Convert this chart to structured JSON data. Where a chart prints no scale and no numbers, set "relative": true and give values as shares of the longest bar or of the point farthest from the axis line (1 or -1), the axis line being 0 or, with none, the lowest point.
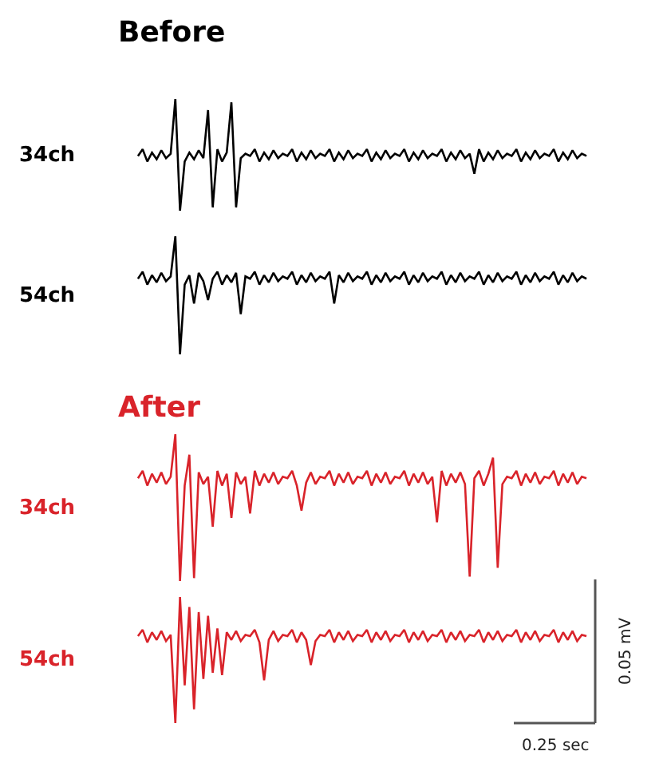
{
  "chart_data": [
    {
      "type": "line",
      "title": "Before",
      "ylabel": "34ch",
      "relative": true,
      "categories": [
        null,
        null,
        null,
        null,
        null,
        null,
        null,
        null,
        null,
        null,
        null,
        null,
        null,
        null,
        null,
        null,
        null,
        null,
        null,
        null,
        null,
        null,
        null,
        null,
        null,
        null,
        null,
        null,
        null,
        null,
        null,
        null,
        null,
        null,
        null,
        null,
        null,
        null,
        null,
        null,
        null,
        null,
        null,
        null,
        null,
        null,
        null,
        null,
        null,
        null,
        null,
        null,
        null,
        null,
        null,
        null,
        null,
        null,
        null,
        null,
        null,
        null,
        null,
        null,
        null,
        null,
        null,
        null,
        null,
        null,
        null,
        null,
        null,
        null,
        null,
        null,
        null,
        null,
        null,
        null,
        null,
        null,
        null,
        null,
        null,
        null,
        null,
        null,
        null,
        null,
        null,
        null,
        null,
        null,
        null,
        null,
        null
      ],
      "series": [
        {
          "color": "#000000",
          "values": [
            0.49,
            0.55,
            0.44,
            0.52,
            0.46,
            0.54,
            0.47,
            0.51,
            1.0,
            0.0,
            0.44,
            0.52,
            0.46,
            0.54,
            0.47,
            0.9,
            0.03,
            0.55,
            0.44,
            0.52,
            0.97,
            0.03,
            0.47,
            0.51,
            0.49,
            0.55,
            0.44,
            0.52,
            0.46,
            0.54,
            0.47,
            0.51,
            0.49,
            0.55,
            0.44,
            0.52,
            0.46,
            0.54,
            0.47,
            0.51,
            0.49,
            0.55,
            0.44,
            0.52,
            0.46,
            0.54,
            0.47,
            0.51,
            0.49,
            0.55,
            0.44,
            0.52,
            0.46,
            0.54,
            0.47,
            0.51,
            0.49,
            0.55,
            0.44,
            0.52,
            0.46,
            0.54,
            0.47,
            0.51,
            0.49,
            0.55,
            0.44,
            0.52,
            0.46,
            0.54,
            0.47,
            0.51,
            0.33,
            0.55,
            0.44,
            0.52,
            0.46,
            0.54,
            0.47,
            0.51,
            0.49,
            0.55,
            0.44,
            0.52,
            0.46,
            0.54,
            0.47,
            0.51,
            0.49,
            0.55,
            0.44,
            0.52,
            0.46,
            0.54,
            0.47,
            0.51,
            0.49
          ]
        }
      ]
    },
    {
      "type": "line",
      "ylabel": "54ch",
      "relative": true,
      "categories": [
        null,
        null,
        null,
        null,
        null,
        null,
        null,
        null,
        null,
        null,
        null,
        null,
        null,
        null,
        null,
        null,
        null,
        null,
        null,
        null,
        null,
        null,
        null,
        null,
        null,
        null,
        null,
        null,
        null,
        null,
        null,
        null,
        null,
        null,
        null,
        null,
        null,
        null,
        null,
        null,
        null,
        null,
        null,
        null,
        null,
        null,
        null,
        null,
        null,
        null,
        null,
        null,
        null,
        null,
        null,
        null,
        null,
        null,
        null,
        null,
        null,
        null,
        null,
        null,
        null,
        null,
        null,
        null,
        null,
        null,
        null,
        null,
        null,
        null,
        null,
        null,
        null,
        null,
        null,
        null,
        null,
        null,
        null,
        null,
        null,
        null,
        null,
        null,
        null,
        null,
        null,
        null,
        null,
        null,
        null,
        null,
        null
      ],
      "series": [
        {
          "color": "#000000",
          "values": [
            0.64,
            0.7,
            0.59,
            0.67,
            0.61,
            0.69,
            0.62,
            0.66,
            1.0,
            0.0,
            0.59,
            0.67,
            0.43,
            0.69,
            0.62,
            0.46,
            0.64,
            0.7,
            0.59,
            0.67,
            0.61,
            0.69,
            0.34,
            0.66,
            0.64,
            0.7,
            0.59,
            0.67,
            0.61,
            0.69,
            0.62,
            0.66,
            0.64,
            0.7,
            0.59,
            0.67,
            0.61,
            0.69,
            0.62,
            0.66,
            0.64,
            0.7,
            0.43,
            0.67,
            0.61,
            0.69,
            0.62,
            0.66,
            0.64,
            0.7,
            0.59,
            0.67,
            0.61,
            0.69,
            0.62,
            0.66,
            0.64,
            0.7,
            0.59,
            0.67,
            0.61,
            0.69,
            0.62,
            0.66,
            0.64,
            0.7,
            0.59,
            0.67,
            0.61,
            0.69,
            0.62,
            0.66,
            0.64,
            0.7,
            0.59,
            0.67,
            0.61,
            0.69,
            0.62,
            0.66,
            0.64,
            0.7,
            0.59,
            0.67,
            0.61,
            0.69,
            0.62,
            0.66,
            0.64,
            0.7,
            0.59,
            0.67,
            0.61,
            0.69,
            0.62,
            0.66,
            0.64
          ]
        }
      ]
    },
    {
      "type": "line",
      "title": "After",
      "ylabel": "34ch",
      "relative": true,
      "categories": [
        null,
        null,
        null,
        null,
        null,
        null,
        null,
        null,
        null,
        null,
        null,
        null,
        null,
        null,
        null,
        null,
        null,
        null,
        null,
        null,
        null,
        null,
        null,
        null,
        null,
        null,
        null,
        null,
        null,
        null,
        null,
        null,
        null,
        null,
        null,
        null,
        null,
        null,
        null,
        null,
        null,
        null,
        null,
        null,
        null,
        null,
        null,
        null,
        null,
        null,
        null,
        null,
        null,
        null,
        null,
        null,
        null,
        null,
        null,
        null,
        null,
        null,
        null,
        null,
        null,
        null,
        null,
        null,
        null,
        null,
        null,
        null,
        null,
        null,
        null,
        null,
        null,
        null,
        null,
        null,
        null,
        null,
        null,
        null,
        null,
        null,
        null,
        null,
        null,
        null,
        null,
        null,
        null,
        null,
        null,
        null,
        null
      ],
      "series": [
        {
          "color": "#d9232a",
          "values": [
            0.7,
            0.75,
            0.65,
            0.73,
            0.67,
            0.74,
            0.66,
            0.71,
            1.0,
            0.0,
            0.65,
            0.86,
            0.02,
            0.74,
            0.66,
            0.71,
            0.37,
            0.75,
            0.65,
            0.73,
            0.43,
            0.74,
            0.66,
            0.71,
            0.46,
            0.75,
            0.65,
            0.73,
            0.67,
            0.74,
            0.66,
            0.71,
            0.7,
            0.75,
            0.65,
            0.48,
            0.67,
            0.74,
            0.66,
            0.71,
            0.7,
            0.75,
            0.65,
            0.73,
            0.67,
            0.74,
            0.66,
            0.71,
            0.7,
            0.75,
            0.65,
            0.73,
            0.67,
            0.74,
            0.66,
            0.71,
            0.7,
            0.75,
            0.65,
            0.73,
            0.67,
            0.74,
            0.66,
            0.71,
            0.4,
            0.75,
            0.65,
            0.73,
            0.67,
            0.74,
            0.66,
            0.03,
            0.7,
            0.75,
            0.65,
            0.73,
            0.84,
            0.09,
            0.66,
            0.71,
            0.7,
            0.75,
            0.65,
            0.73,
            0.67,
            0.74,
            0.66,
            0.71,
            0.7,
            0.75,
            0.65,
            0.73,
            0.67,
            0.74,
            0.66,
            0.71,
            0.7
          ]
        }
      ]
    },
    {
      "type": "line",
      "ylabel": "54ch",
      "relative": true,
      "annotations": [
        "0.05 mV",
        "0.25 sec"
      ],
      "categories": [
        null,
        null,
        null,
        null,
        null,
        null,
        null,
        null,
        null,
        null,
        null,
        null,
        null,
        null,
        null,
        null,
        null,
        null,
        null,
        null,
        null,
        null,
        null,
        null,
        null,
        null,
        null,
        null,
        null,
        null,
        null,
        null,
        null,
        null,
        null,
        null,
        null,
        null,
        null,
        null,
        null,
        null,
        null,
        null,
        null,
        null,
        null,
        null,
        null,
        null,
        null,
        null,
        null,
        null,
        null,
        null,
        null,
        null,
        null,
        null,
        null,
        null,
        null,
        null,
        null,
        null,
        null,
        null,
        null,
        null,
        null,
        null,
        null,
        null,
        null,
        null,
        null,
        null,
        null,
        null,
        null,
        null,
        null,
        null,
        null,
        null,
        null,
        null,
        null,
        null,
        null,
        null,
        null,
        null,
        null,
        null,
        null
      ],
      "series": [
        {
          "color": "#d9232a",
          "values": [
            0.69,
            0.74,
            0.64,
            0.72,
            0.66,
            0.73,
            0.65,
            0.7,
            0.0,
            1.0,
            0.3,
            0.92,
            0.11,
            0.88,
            0.35,
            0.85,
            0.4,
            0.75,
            0.38,
            0.72,
            0.66,
            0.73,
            0.65,
            0.7,
            0.69,
            0.74,
            0.64,
            0.34,
            0.66,
            0.73,
            0.65,
            0.7,
            0.69,
            0.74,
            0.64,
            0.72,
            0.66,
            0.46,
            0.65,
            0.7,
            0.69,
            0.74,
            0.64,
            0.72,
            0.66,
            0.73,
            0.65,
            0.7,
            0.69,
            0.74,
            0.64,
            0.72,
            0.66,
            0.73,
            0.65,
            0.7,
            0.69,
            0.74,
            0.64,
            0.72,
            0.66,
            0.73,
            0.65,
            0.7,
            0.69,
            0.74,
            0.64,
            0.72,
            0.66,
            0.73,
            0.65,
            0.7,
            0.69,
            0.74,
            0.64,
            0.72,
            0.66,
            0.73,
            0.65,
            0.7,
            0.69,
            0.74,
            0.64,
            0.72,
            0.66,
            0.73,
            0.65,
            0.7,
            0.69,
            0.74,
            0.64,
            0.72,
            0.66,
            0.73,
            0.65,
            0.7,
            0.69
          ]
        }
      ]
    }
  ]
}
